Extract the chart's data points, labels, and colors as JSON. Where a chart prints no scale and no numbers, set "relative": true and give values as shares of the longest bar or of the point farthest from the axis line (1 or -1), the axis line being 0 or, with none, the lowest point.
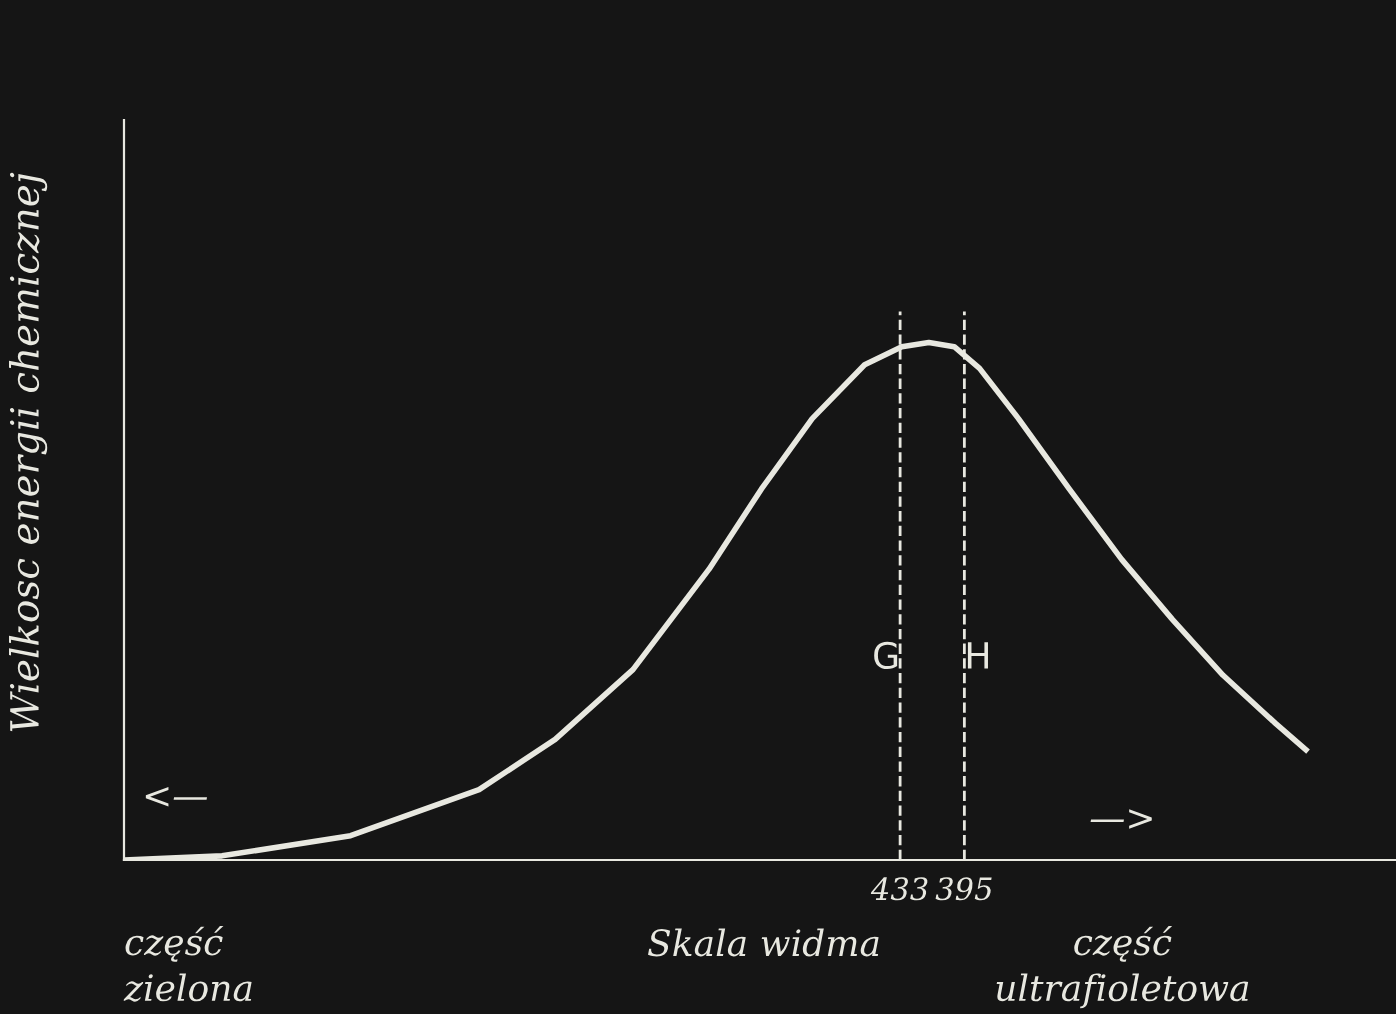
{
  "chart_data": {
    "type": "line",
    "relative": true,
    "xlabel": "Skala widma",
    "ylabel": "Wielkosc energii chemicznej",
    "x": [
      892,
      834,
      758,
      682,
      637,
      591,
      546,
      515,
      485,
      454,
      432,
      416,
      401,
      386,
      363,
      333,
      302,
      272,
      242,
      211,
      193
    ],
    "series": [
      {
        "color": "#e8e8e0",
        "values": [
          0,
          0.008,
          0.047,
          0.136,
          0.233,
          0.368,
          0.562,
          0.717,
          0.853,
          0.957,
          0.992,
          1.0,
          0.992,
          0.95,
          0.853,
          0.717,
          0.581,
          0.465,
          0.357,
          0.264,
          0.213
        ]
      }
    ],
    "xlim": [
      892,
      135
    ],
    "xticks": [
      433,
      395
    ],
    "ref_lines": [
      {
        "axis": "x",
        "value": 433,
        "label": "G",
        "line_style": "dashed",
        "color": "#e8e8e0"
      },
      {
        "axis": "x",
        "value": 395,
        "label": "H",
        "line_style": "dashed",
        "color": "#e8e8e0"
      }
    ],
    "annotations": [
      "część\nzielona",
      "część\nultrafioletowa",
      "<—",
      "—>"
    ],
    "grid": false,
    "legend": false,
    "marker": "none",
    "line_style": "solid"
  }
}
